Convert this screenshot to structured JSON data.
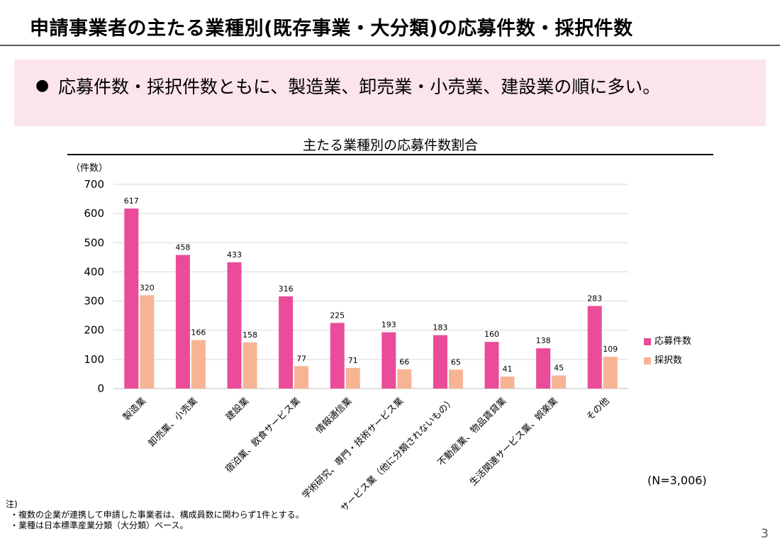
{
  "page": {
    "title": "申請事業者の主たる業種別(既存事業・大分類)の応募件数・採択件数",
    "bullet": "●",
    "summary": "応募件数・採択件数ともに、製造業、卸売業・小売業、建設業の順に多い。",
    "sample_size": "(N=3,006)",
    "notes_title": "注)",
    "notes": [
      "・複数の企業が連携して申請した事業者は、構成員数に関わらず1件とする。",
      "・業種は日本標準産業分類（大分類）ベース。"
    ],
    "page_number": "3"
  },
  "chart_data": {
    "type": "bar",
    "title": "主たる業種別の応募件数割合",
    "ylabel": "（件数）",
    "xlabel": "",
    "ylim": [
      0,
      700
    ],
    "yticks": [
      0,
      100,
      200,
      300,
      400,
      500,
      600,
      700
    ],
    "grid": true,
    "legend_position": "right",
    "categories": [
      "製造業",
      "卸売業、小売業",
      "建設業",
      "宿泊業、飲食サービス業",
      "情報通信業",
      "学術研究、専門・技術サービス業",
      "サービス業（他に分類されないもの）",
      "不動産業、物品賃貸業",
      "生活関連サービス業、娯楽業",
      "その他"
    ],
    "series": [
      {
        "name": "応募件数",
        "color": "#ea4c99",
        "values": [
          617,
          458,
          433,
          316,
          225,
          193,
          183,
          160,
          138,
          283
        ]
      },
      {
        "name": "採択数",
        "color": "#f7b495",
        "values": [
          320,
          166,
          158,
          77,
          71,
          66,
          65,
          41,
          45,
          109
        ]
      }
    ]
  }
}
